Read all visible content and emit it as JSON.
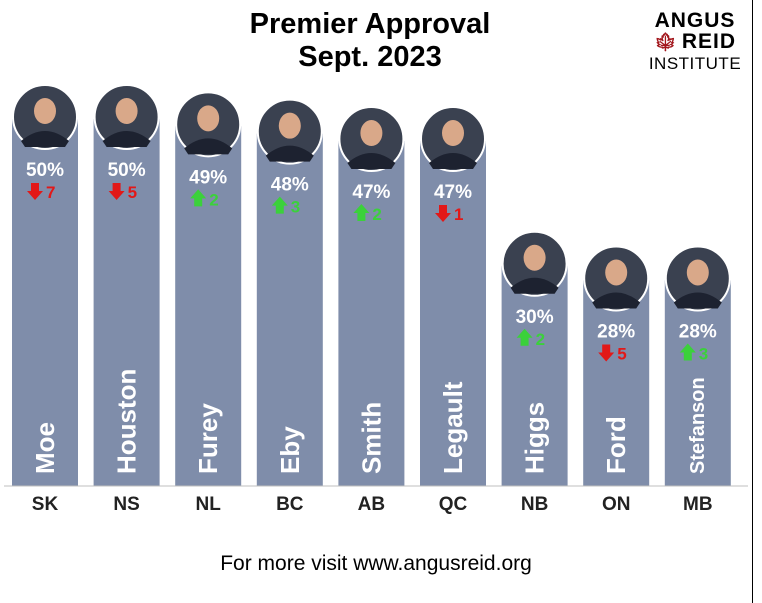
{
  "title_line1": "Premier Approval",
  "title_line2": "Sept. 2023",
  "logo": {
    "line1": "ANGUS",
    "line2": "REID",
    "line3": "INSTITUTE"
  },
  "footer": "For more visit www.angusreid.org",
  "colors": {
    "bar": "#7f8daa",
    "up": "#3bd13b",
    "down": "#e21818",
    "axis": "#bfbfbf"
  },
  "chart_data": {
    "type": "bar",
    "title": "Premier Approval Sept. 2023",
    "categories": [
      "SK",
      "NS",
      "NL",
      "BC",
      "AB",
      "QC",
      "NB",
      "ON",
      "MB"
    ],
    "premiers": [
      "Moe",
      "Houston",
      "Furey",
      "Eby",
      "Smith",
      "Legault",
      "Higgs",
      "Ford",
      "Stefanson"
    ],
    "values": [
      50,
      50,
      49,
      48,
      47,
      47,
      30,
      28,
      28
    ],
    "value_labels": [
      "50%",
      "50%",
      "49%",
      "48%",
      "47%",
      "47%",
      "30%",
      "28%",
      "28%"
    ],
    "changes": [
      {
        "direction": "down",
        "value": 7
      },
      {
        "direction": "down",
        "value": 5
      },
      {
        "direction": "up",
        "value": 2
      },
      {
        "direction": "up",
        "value": 3
      },
      {
        "direction": "up",
        "value": 2
      },
      {
        "direction": "down",
        "value": 1
      },
      {
        "direction": "up",
        "value": 2
      },
      {
        "direction": "down",
        "value": 5
      },
      {
        "direction": "up",
        "value": 3
      }
    ],
    "ylim": [
      0,
      100
    ],
    "xlabel": "",
    "ylabel": ""
  }
}
